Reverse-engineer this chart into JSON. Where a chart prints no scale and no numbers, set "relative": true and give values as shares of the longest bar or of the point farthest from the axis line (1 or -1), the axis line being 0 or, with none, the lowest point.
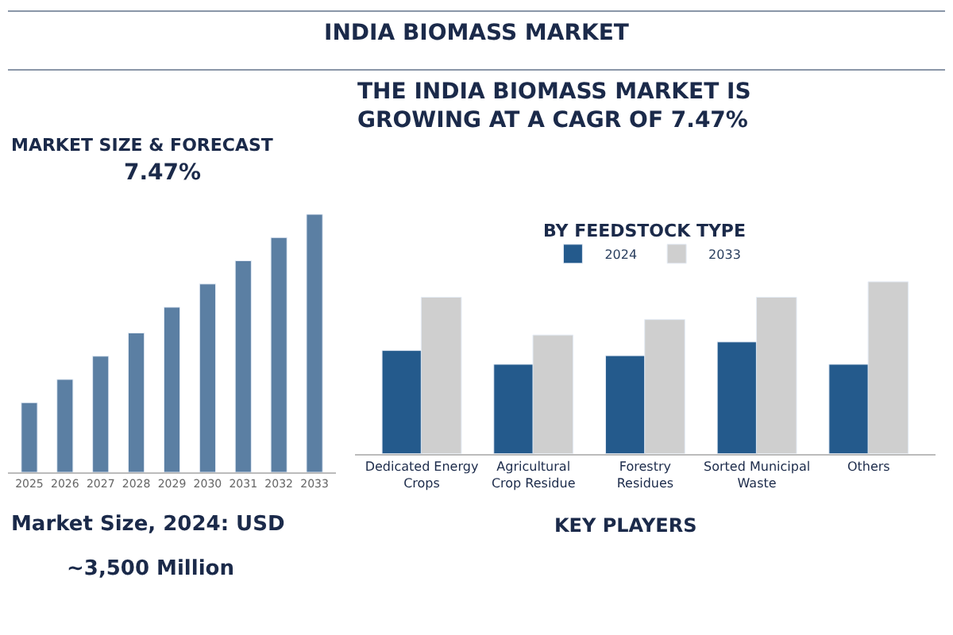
{
  "chart_data": [
    {
      "type": "bar",
      "title": "MARKET SIZE & FORECAST",
      "relative": true,
      "color": "#5b7fa3",
      "categories": [
        "2025",
        "2026",
        "2027",
        "2028",
        "2029",
        "2030",
        "2031",
        "2032",
        "2033"
      ],
      "values": [
        0.27,
        0.36,
        0.45,
        0.54,
        0.64,
        0.73,
        0.82,
        0.91,
        1.0
      ],
      "annotations": [
        "7.47%",
        "Market Size, 2024: USD",
        "~3,500 Million"
      ]
    },
    {
      "type": "bar",
      "title": "BY FEEDSTOCK TYPE",
      "relative": true,
      "legend": "top",
      "categories": [
        "Dedicated Energy Crops",
        "Agricultural Crop Residue",
        "Forestry Residues",
        "Sorted Municipal Waste",
        "Others"
      ],
      "series": [
        {
          "name": "2024",
          "color": "#245a8c",
          "values": [
            0.6,
            0.52,
            0.57,
            0.65,
            0.52
          ]
        },
        {
          "name": "2033",
          "color": "#cfcfcf",
          "values": [
            0.91,
            0.69,
            0.78,
            0.91,
            1.0
          ]
        }
      ]
    },
    {
      "type": "other",
      "title": "INDIA BIOMASS MARKET",
      "annotations": [
        "THE INDIA BIOMASS MARKET IS GROWING AT A CAGR OF 7.47%",
        "KEY PLAYERS"
      ]
    }
  ]
}
